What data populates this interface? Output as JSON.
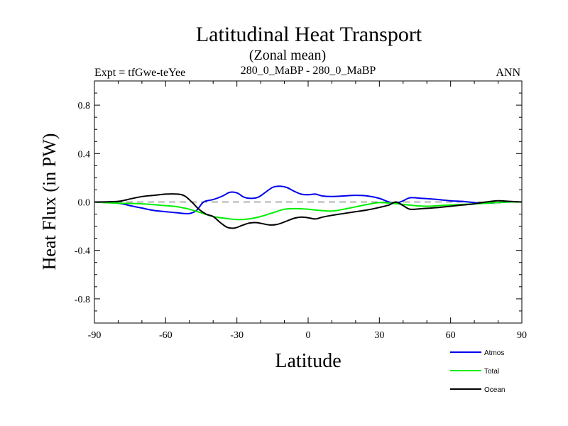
{
  "chart_data": {
    "type": "line",
    "title": "Latitudinal Heat Transport",
    "subtitle": "(Zonal mean)",
    "center_label": "280_0_MaBP - 280_0_MaBP",
    "left_label": "Expt = tfGwe-teYee",
    "right_label": "ANN",
    "xlabel": "Latitude",
    "ylabel": "Heat Flux (in PW)",
    "xlim": [
      -90,
      90
    ],
    "ylim": [
      -1.0,
      1.0
    ],
    "x_ticks": [
      -90,
      -60,
      -30,
      0,
      30,
      60,
      90
    ],
    "x_tick_labels": [
      "-90",
      "-60",
      "-30",
      "0",
      "30",
      "60",
      "90"
    ],
    "y_ticks": [
      -0.8,
      -0.4,
      0.0,
      0.4,
      0.8
    ],
    "y_tick_labels": [
      "-0.8",
      "-0.4",
      "0.0",
      "0.4",
      "0.8"
    ],
    "zero_line": true,
    "series": [
      {
        "name": "Atmos",
        "color": "#0000ee",
        "x": [
          -90,
          -80,
          -75,
          -70,
          -65,
          -60,
          -55,
          -50,
          -47,
          -44,
          -40,
          -36,
          -33,
          -30,
          -27,
          -24,
          -21,
          -18,
          -15,
          -12,
          -9,
          -6,
          -3,
          0,
          3,
          6,
          10,
          15,
          20,
          25,
          30,
          34,
          37,
          40,
          43,
          48,
          55,
          60,
          65,
          70,
          75,
          80,
          85,
          90
        ],
        "values": [
          0.0,
          -0.01,
          -0.03,
          -0.05,
          -0.07,
          -0.08,
          -0.09,
          -0.095,
          -0.07,
          0.0,
          0.02,
          0.05,
          0.08,
          0.075,
          0.04,
          0.03,
          0.04,
          0.08,
          0.12,
          0.13,
          0.12,
          0.09,
          0.065,
          0.06,
          0.065,
          0.05,
          0.045,
          0.05,
          0.055,
          0.05,
          0.03,
          0.0,
          -0.01,
          0.01,
          0.035,
          0.03,
          0.02,
          0.01,
          0.005,
          -0.005,
          -0.01,
          -0.005,
          0.0,
          0.0
        ]
      },
      {
        "name": "Total",
        "color": "#00ee00",
        "x": [
          -90,
          -80,
          -70,
          -60,
          -55,
          -50,
          -45,
          -40,
          -35,
          -30,
          -25,
          -20,
          -15,
          -10,
          -5,
          0,
          5,
          10,
          15,
          20,
          25,
          30,
          35,
          40,
          45,
          50,
          55,
          60,
          65,
          70,
          75,
          80,
          85,
          90
        ],
        "values": [
          0.0,
          -0.01,
          -0.015,
          -0.03,
          -0.04,
          -0.06,
          -0.09,
          -0.12,
          -0.135,
          -0.145,
          -0.14,
          -0.12,
          -0.09,
          -0.06,
          -0.055,
          -0.06,
          -0.07,
          -0.075,
          -0.06,
          -0.04,
          -0.02,
          -0.005,
          -0.01,
          -0.02,
          -0.03,
          -0.035,
          -0.03,
          -0.025,
          -0.02,
          -0.015,
          -0.01,
          -0.005,
          0.0,
          0.0
        ]
      },
      {
        "name": "Ocean",
        "color": "#000000",
        "x": [
          -90,
          -80,
          -75,
          -70,
          -65,
          -60,
          -55,
          -52,
          -49,
          -46,
          -43,
          -40,
          -37,
          -34,
          -31,
          -28,
          -25,
          -22,
          -19,
          -16,
          -13,
          -10,
          -6,
          -3,
          0,
          3,
          6,
          10,
          15,
          20,
          25,
          30,
          34,
          37,
          40,
          43,
          48,
          55,
          60,
          65,
          70,
          75,
          80,
          85,
          90
        ],
        "values": [
          0.0,
          0.005,
          0.025,
          0.045,
          0.055,
          0.065,
          0.065,
          0.05,
          0.0,
          -0.06,
          -0.1,
          -0.12,
          -0.17,
          -0.21,
          -0.215,
          -0.195,
          -0.175,
          -0.17,
          -0.18,
          -0.19,
          -0.185,
          -0.165,
          -0.135,
          -0.125,
          -0.13,
          -0.14,
          -0.125,
          -0.11,
          -0.095,
          -0.08,
          -0.065,
          -0.045,
          -0.025,
          0.0,
          -0.03,
          -0.06,
          -0.055,
          -0.045,
          -0.035,
          -0.025,
          -0.015,
          0.0,
          0.01,
          0.005,
          0.0
        ]
      }
    ]
  }
}
